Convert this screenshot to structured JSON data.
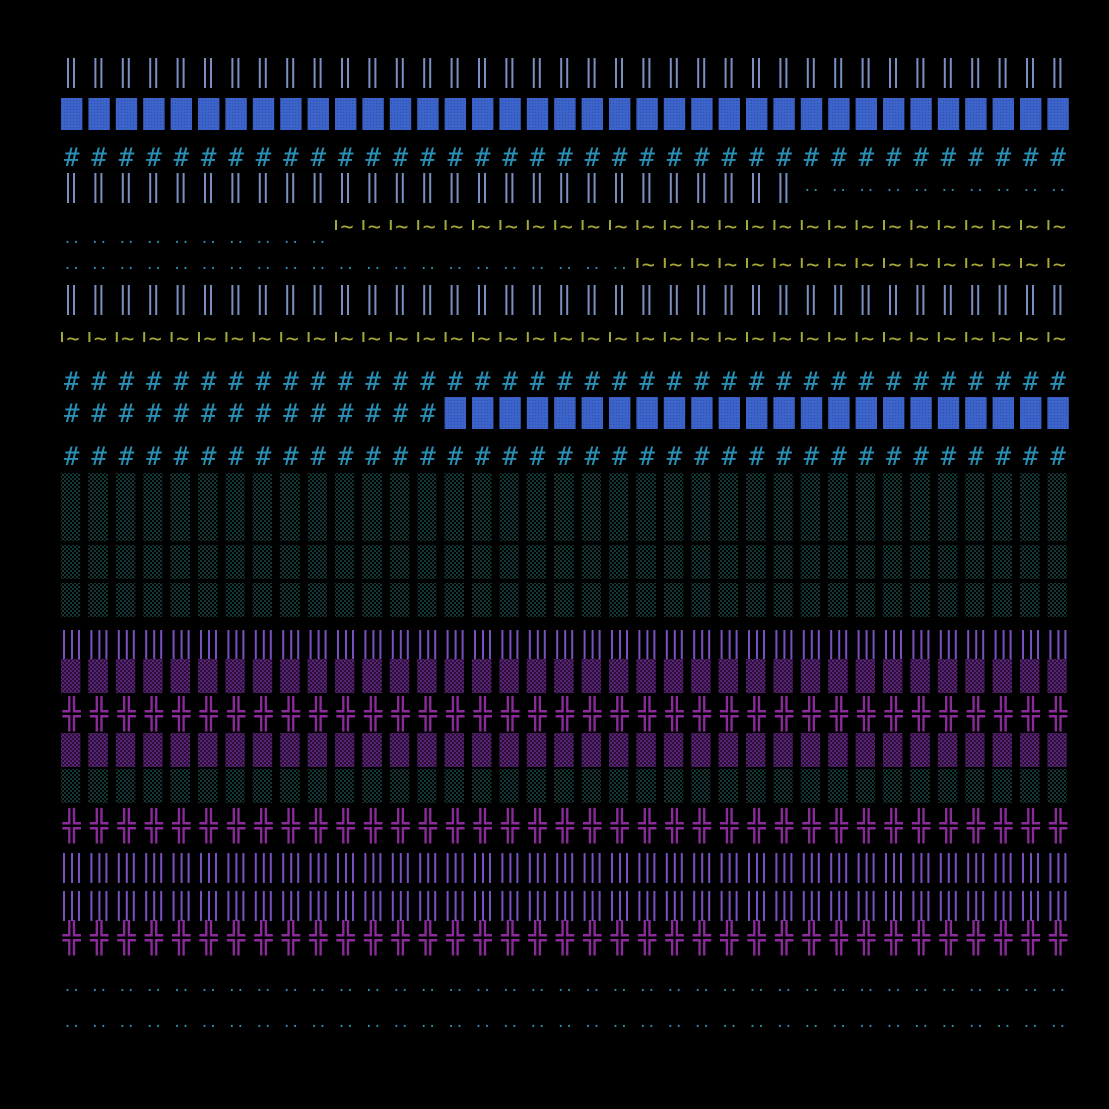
{
  "palette": {
    "background": "#000000",
    "blue": "#3b63c9",
    "cyan": "#2a8fb4",
    "gray_blue": "#7a8fc4",
    "olive": "#a8a83a",
    "teal": "#2c7a78",
    "purple": "#7a4fc0",
    "dark_purple": "#5a2378",
    "magenta": "#8b2a9a"
  },
  "glyphs": {
    "hash": "#",
    "double_bar": "‖",
    "cross": "╬",
    "tilde": "~",
    "dots": ".."
  },
  "rows": [
    {
      "id": "r1",
      "segments": [
        {
          "pattern": "double-bar",
          "color": "gray_blue"
        }
      ]
    },
    {
      "id": "r2",
      "segments": [
        {
          "pattern": "solid-block",
          "color": "blue"
        }
      ]
    },
    {
      "id": "r3",
      "segments": [
        {
          "pattern": "hash",
          "color": "cyan"
        }
      ]
    },
    {
      "id": "r4",
      "segments": [
        {
          "pattern": "double-bar",
          "color": "gray_blue",
          "to": 0.72
        },
        {
          "pattern": "dots",
          "color": "cyan",
          "from": 0.72
        }
      ]
    },
    {
      "id": "r5",
      "segments": [
        {
          "pattern": "tilde",
          "color": "olive",
          "from": 0.25
        }
      ]
    },
    {
      "id": "r6",
      "segments": [
        {
          "pattern": "dots",
          "color": "cyan",
          "to": 0.25
        }
      ]
    },
    {
      "id": "r7",
      "segments": [
        {
          "pattern": "dots",
          "color": "cyan",
          "to": 0.56
        },
        {
          "pattern": "tilde",
          "color": "olive",
          "from": 0.56
        }
      ]
    },
    {
      "id": "r8",
      "segments": [
        {
          "pattern": "double-bar",
          "color": "gray_blue"
        }
      ]
    },
    {
      "id": "r9",
      "segments": [
        {
          "pattern": "tilde",
          "color": "olive"
        }
      ]
    },
    {
      "id": "r10",
      "segments": [
        {
          "pattern": "hash",
          "color": "cyan"
        }
      ]
    },
    {
      "id": "r11",
      "segments": [
        {
          "pattern": "hash",
          "color": "cyan",
          "to": 0.36
        },
        {
          "pattern": "solid-block",
          "color": "blue",
          "from": 0.36
        }
      ]
    },
    {
      "id": "r12",
      "segments": [
        {
          "pattern": "hash",
          "color": "cyan"
        }
      ]
    },
    {
      "id": "r13",
      "segments": [
        {
          "pattern": "shade-block",
          "color": "teal"
        }
      ]
    },
    {
      "id": "r14",
      "segments": [
        {
          "pattern": "shade-block",
          "color": "teal"
        }
      ]
    },
    {
      "id": "r15",
      "segments": [
        {
          "pattern": "shade-block",
          "color": "teal"
        }
      ]
    },
    {
      "id": "r16",
      "segments": [
        {
          "pattern": "shade-block",
          "color": "teal"
        }
      ]
    },
    {
      "id": "r17",
      "segments": [
        {
          "pattern": "bars",
          "color": "purple"
        }
      ]
    },
    {
      "id": "r18",
      "segments": [
        {
          "pattern": "shade-block",
          "color": "dark_purple"
        }
      ]
    },
    {
      "id": "r19",
      "segments": [
        {
          "pattern": "cross",
          "color": "magenta"
        }
      ]
    },
    {
      "id": "r20",
      "segments": [
        {
          "pattern": "shade-block",
          "color": "dark_purple"
        }
      ]
    },
    {
      "id": "r21",
      "segments": [
        {
          "pattern": "shade-block",
          "color": "teal"
        }
      ]
    },
    {
      "id": "r22",
      "segments": [
        {
          "pattern": "cross",
          "color": "magenta"
        }
      ]
    },
    {
      "id": "r23",
      "segments": [
        {
          "pattern": "bars",
          "color": "purple"
        }
      ]
    },
    {
      "id": "r24",
      "segments": [
        {
          "pattern": "bars",
          "color": "purple"
        }
      ]
    },
    {
      "id": "r25",
      "segments": [
        {
          "pattern": "cross",
          "color": "magenta"
        }
      ]
    },
    {
      "id": "r26",
      "segments": [
        {
          "pattern": "dots",
          "color": "cyan"
        }
      ]
    },
    {
      "id": "r27",
      "segments": [
        {
          "pattern": "dots",
          "color": "cyan"
        }
      ]
    }
  ]
}
